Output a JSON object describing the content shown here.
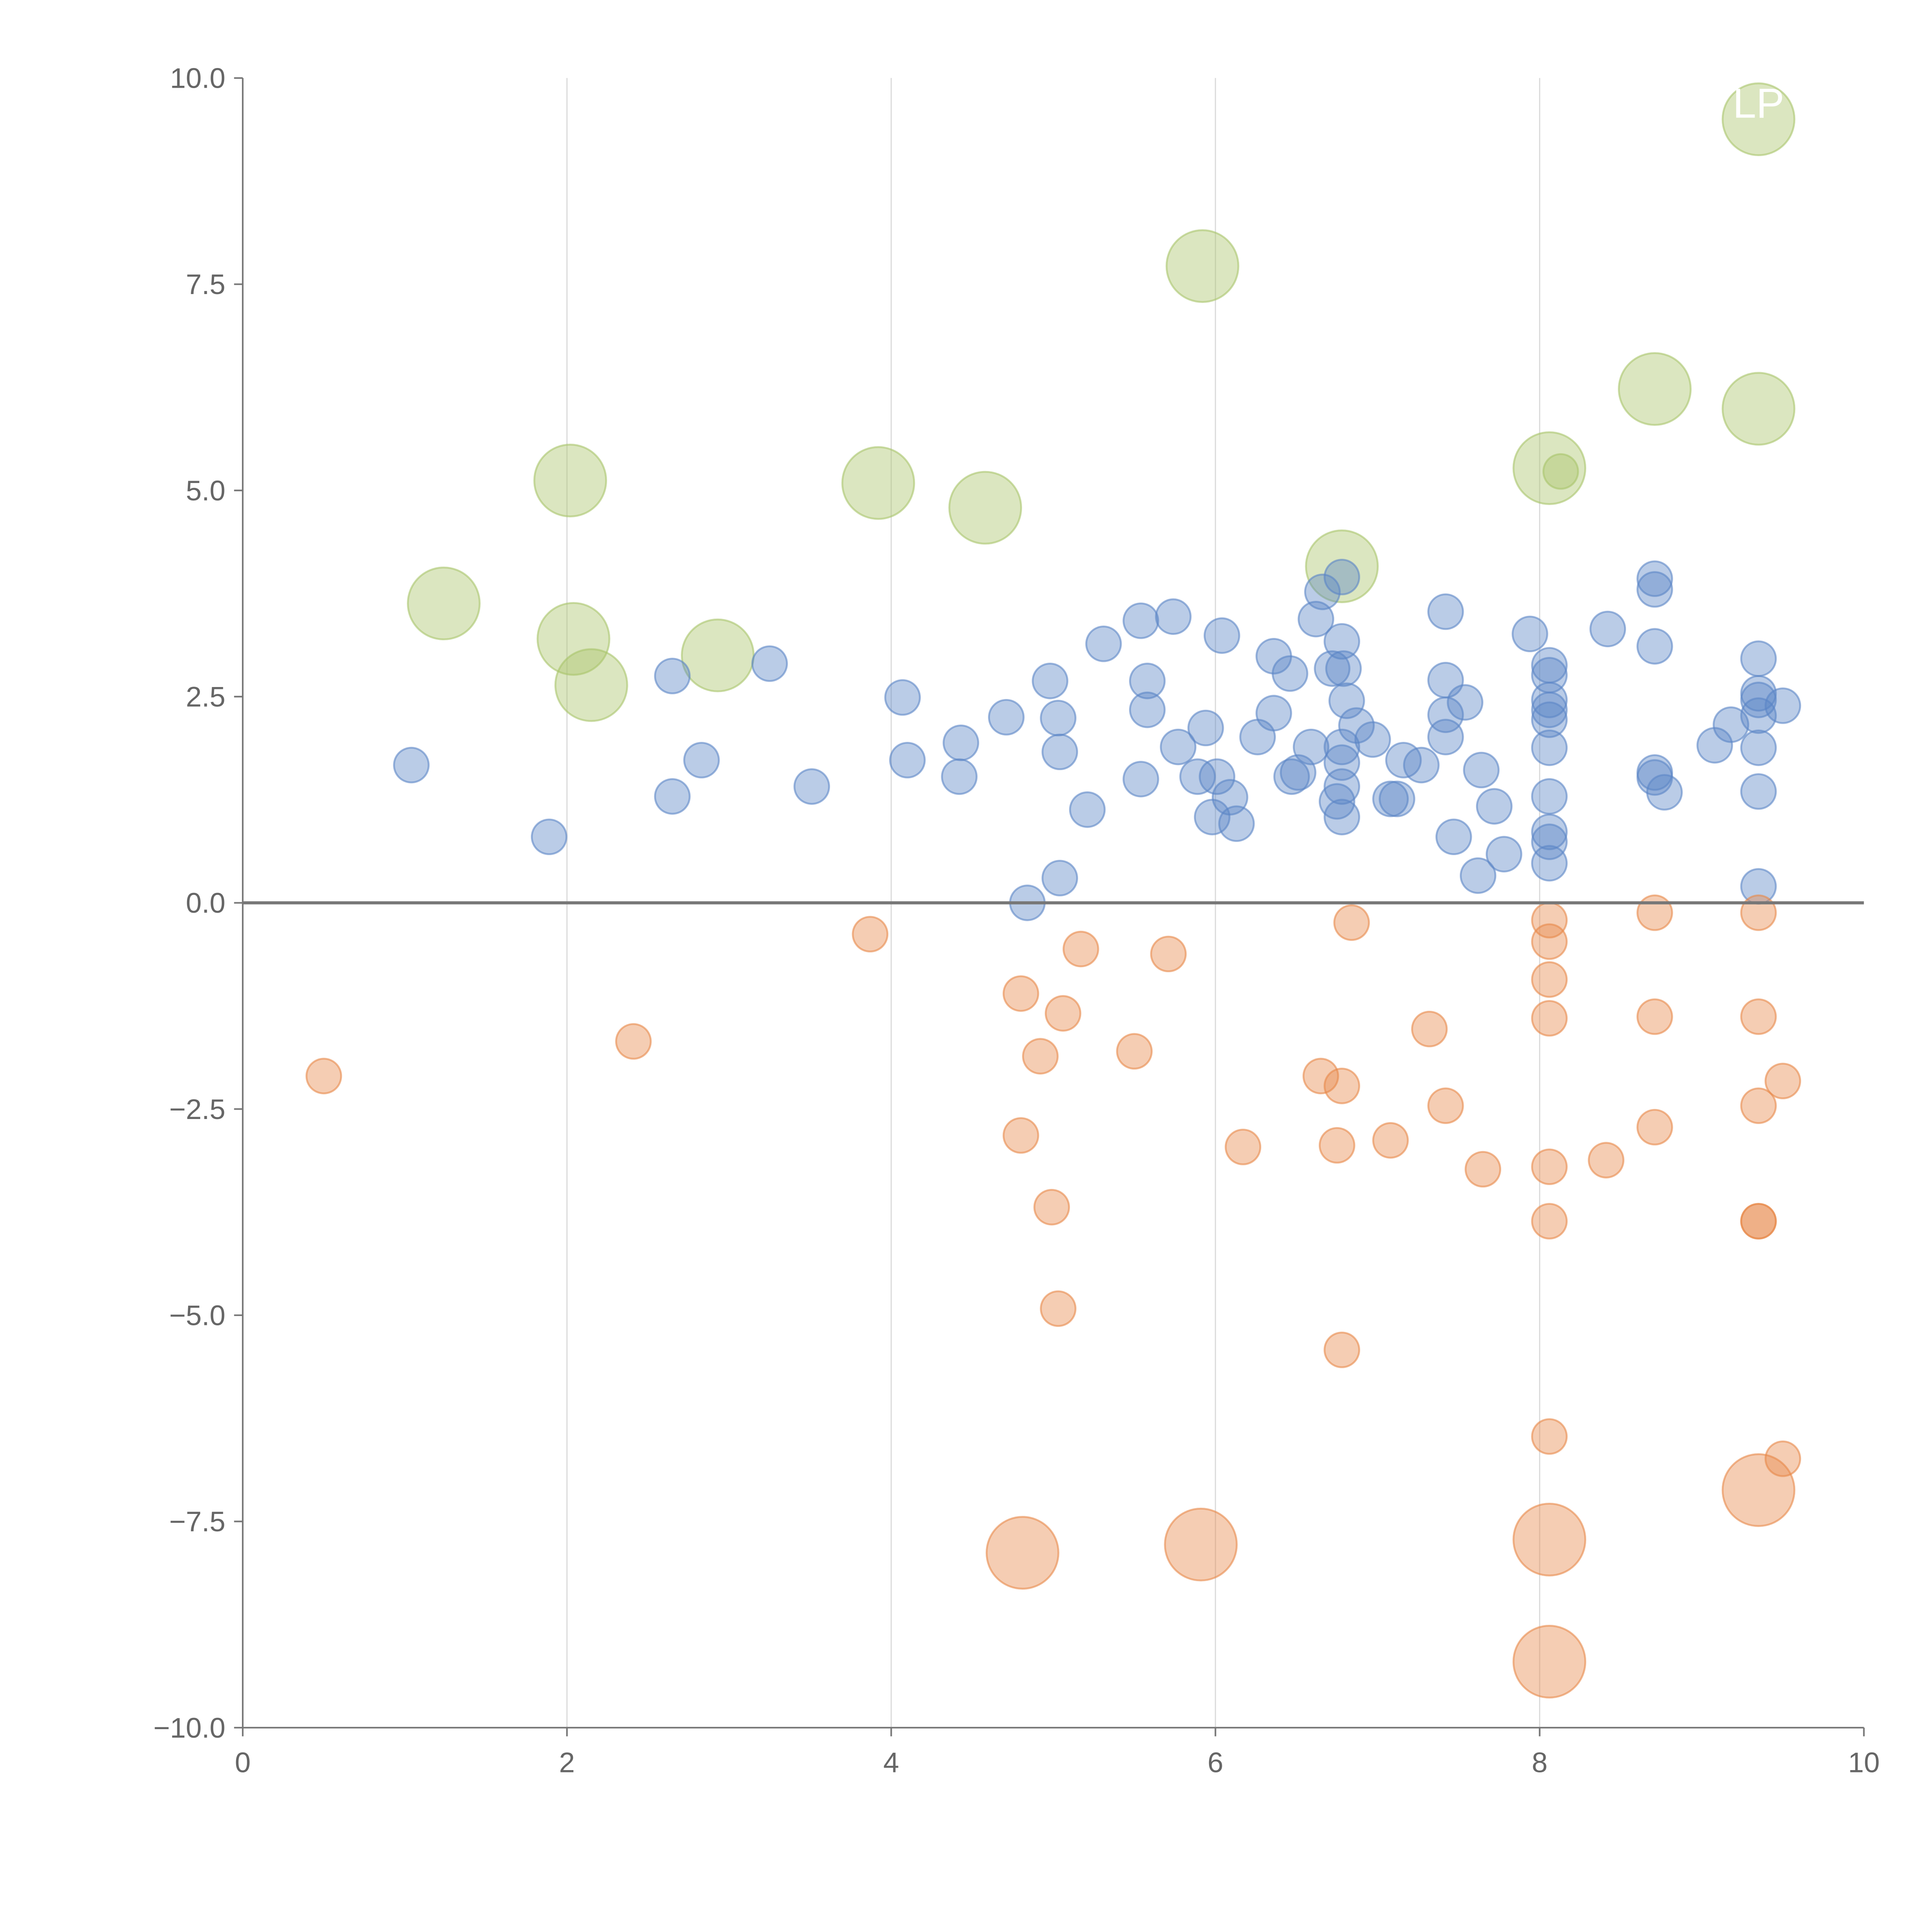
{
  "chart_data": {
    "type": "scatter",
    "title": "",
    "xlabel": "",
    "ylabel": "",
    "xlim": [
      0,
      10
    ],
    "ylim": [
      -10,
      10
    ],
    "xticks": [
      "0",
      "2",
      "4",
      "6",
      "8",
      "10"
    ],
    "yticks": [
      "10.0",
      "7.5",
      "5.0",
      "2.5",
      "0.0",
      "−2.5",
      "−5.0",
      "−7.5",
      "−10.0"
    ],
    "grid": "vertical",
    "reference_line_y": 0,
    "annotations": [
      {
        "text": "LP",
        "x": 9.35,
        "y": 9.7
      }
    ],
    "series": [
      {
        "name": "green",
        "color": "#a9c46a",
        "points": [
          [
            1.24,
            3.63,
            2
          ],
          [
            2.02,
            5.12,
            2
          ],
          [
            2.04,
            3.2,
            2
          ],
          [
            2.15,
            2.64,
            2
          ],
          [
            2.93,
            3.0,
            2
          ],
          [
            3.92,
            5.09,
            2
          ],
          [
            4.58,
            4.79,
            2
          ],
          [
            5.92,
            7.72,
            2
          ],
          [
            6.78,
            4.08,
            2
          ],
          [
            8.06,
            5.27,
            2
          ],
          [
            8.13,
            5.23,
            1
          ],
          [
            8.71,
            6.23,
            2
          ],
          [
            9.35,
            5.99,
            2
          ],
          [
            9.35,
            9.5,
            2
          ]
        ]
      },
      {
        "name": "blue",
        "color": "#5b86c6",
        "points": [
          [
            1.04,
            1.67,
            1
          ],
          [
            1.89,
            0.8,
            1
          ],
          [
            2.65,
            2.75,
            1
          ],
          [
            2.65,
            1.29,
            1
          ],
          [
            2.83,
            1.73,
            1
          ],
          [
            3.25,
            2.9,
            1
          ],
          [
            3.51,
            1.41,
            1
          ],
          [
            4.07,
            2.49,
            1
          ],
          [
            4.1,
            1.73,
            1
          ],
          [
            4.43,
            1.94,
            1
          ],
          [
            4.42,
            1.53,
            1
          ],
          [
            4.71,
            2.25,
            1
          ],
          [
            4.98,
            2.69,
            1
          ],
          [
            5.03,
            2.24,
            1
          ],
          [
            5.04,
            1.83,
            1
          ],
          [
            4.84,
            0.0,
            1
          ],
          [
            5.04,
            0.3,
            1
          ],
          [
            5.21,
            1.13,
            1
          ],
          [
            5.31,
            3.14,
            1
          ],
          [
            5.54,
            3.42,
            1
          ],
          [
            5.58,
            2.69,
            1
          ],
          [
            5.58,
            2.34,
            1
          ],
          [
            5.54,
            1.5,
            1
          ],
          [
            5.74,
            3.47,
            1
          ],
          [
            5.77,
            1.89,
            1
          ],
          [
            5.94,
            2.12,
            1
          ],
          [
            5.89,
            1.53,
            1
          ],
          [
            6.01,
            1.53,
            1
          ],
          [
            5.98,
            1.04,
            1
          ],
          [
            6.09,
            1.28,
            1
          ],
          [
            6.13,
            0.96,
            1
          ],
          [
            6.04,
            3.24,
            1
          ],
          [
            6.26,
            2.01,
            1
          ],
          [
            6.36,
            2.99,
            1
          ],
          [
            6.36,
            2.3,
            1
          ],
          [
            6.46,
            2.78,
            1
          ],
          [
            6.47,
            1.53,
            1
          ],
          [
            6.51,
            1.58,
            1
          ],
          [
            6.59,
            1.89,
            1
          ],
          [
            6.62,
            3.44,
            1
          ],
          [
            6.66,
            3.77,
            1
          ],
          [
            6.72,
            2.84,
            1
          ],
          [
            6.78,
            3.95,
            1
          ],
          [
            6.78,
            3.17,
            1
          ],
          [
            6.79,
            2.84,
            1
          ],
          [
            6.81,
            2.45,
            1
          ],
          [
            6.78,
            1.89,
            1
          ],
          [
            6.78,
            1.7,
            1
          ],
          [
            6.78,
            1.41,
            1
          ],
          [
            6.75,
            1.23,
            1
          ],
          [
            6.78,
            1.04,
            1
          ],
          [
            6.87,
            2.15,
            1
          ],
          [
            6.97,
            1.98,
            1
          ],
          [
            7.08,
            1.26,
            1
          ],
          [
            7.12,
            1.26,
            1
          ],
          [
            7.16,
            1.73,
            1
          ],
          [
            7.27,
            1.67,
            1
          ],
          [
            7.42,
            3.53,
            1
          ],
          [
            7.42,
            2.7,
            1
          ],
          [
            7.42,
            2.28,
            1
          ],
          [
            7.42,
            2.01,
            1
          ],
          [
            7.54,
            2.43,
            1
          ],
          [
            7.47,
            0.8,
            1
          ],
          [
            7.64,
            1.61,
            1
          ],
          [
            7.62,
            0.33,
            1
          ],
          [
            7.72,
            1.17,
            1
          ],
          [
            7.78,
            0.59,
            1
          ],
          [
            7.94,
            3.26,
            1
          ],
          [
            8.06,
            2.88,
            1
          ],
          [
            8.06,
            2.76,
            1
          ],
          [
            8.06,
            2.46,
            1
          ],
          [
            8.06,
            2.34,
            1
          ],
          [
            8.06,
            2.22,
            1
          ],
          [
            8.06,
            1.88,
            1
          ],
          [
            8.06,
            1.29,
            1
          ],
          [
            8.06,
            0.86,
            1
          ],
          [
            8.06,
            0.74,
            1
          ],
          [
            8.06,
            0.48,
            1
          ],
          [
            8.42,
            3.32,
            1
          ],
          [
            8.71,
            3.93,
            1
          ],
          [
            8.71,
            3.8,
            1
          ],
          [
            8.71,
            3.11,
            1
          ],
          [
            8.71,
            1.58,
            1
          ],
          [
            8.71,
            1.52,
            1
          ],
          [
            8.77,
            1.34,
            1
          ],
          [
            9.08,
            1.91,
            1
          ],
          [
            9.18,
            2.16,
            1
          ],
          [
            9.35,
            2.96,
            1
          ],
          [
            9.35,
            2.54,
            1
          ],
          [
            9.35,
            2.46,
            1
          ],
          [
            9.35,
            2.27,
            1
          ],
          [
            9.35,
            1.88,
            1
          ],
          [
            9.35,
            1.35,
            1
          ],
          [
            9.35,
            0.2,
            1
          ],
          [
            9.5,
            2.39,
            1
          ]
        ]
      },
      {
        "name": "orange",
        "color": "#e8894a",
        "points": [
          [
            0.5,
            -2.1,
            1
          ],
          [
            2.41,
            -1.68,
            1
          ],
          [
            3.87,
            -0.38,
            1
          ],
          [
            4.8,
            -1.1,
            1
          ],
          [
            4.92,
            -1.86,
            1
          ],
          [
            5.06,
            -1.34,
            1
          ],
          [
            5.17,
            -0.56,
            1
          ],
          [
            4.8,
            -2.82,
            1
          ],
          [
            4.99,
            -3.69,
            1
          ],
          [
            5.03,
            -4.92,
            1
          ],
          [
            5.5,
            -1.8,
            1
          ],
          [
            5.71,
            -0.62,
            1
          ],
          [
            6.17,
            -2.96,
            1
          ],
          [
            6.65,
            -2.1,
            1
          ],
          [
            6.78,
            -2.22,
            1
          ],
          [
            6.75,
            -2.94,
            1
          ],
          [
            6.84,
            -0.24,
            1
          ],
          [
            7.08,
            -2.88,
            1
          ],
          [
            6.78,
            -5.42,
            1
          ],
          [
            7.32,
            -1.53,
            1
          ],
          [
            7.42,
            -2.46,
            1
          ],
          [
            7.65,
            -3.23,
            1
          ],
          [
            8.06,
            -0.21,
            1
          ],
          [
            8.06,
            -0.47,
            1
          ],
          [
            8.06,
            -0.93,
            1
          ],
          [
            8.06,
            -1.4,
            1
          ],
          [
            8.06,
            -3.2,
            1
          ],
          [
            8.06,
            -3.86,
            1
          ],
          [
            8.06,
            -6.47,
            1
          ],
          [
            8.41,
            -3.12,
            1
          ],
          [
            8.71,
            -0.12,
            1
          ],
          [
            8.71,
            -1.38,
            1
          ],
          [
            8.71,
            -2.72,
            1
          ],
          [
            9.35,
            -0.12,
            1
          ],
          [
            9.35,
            -1.38,
            1
          ],
          [
            9.35,
            -2.46,
            1
          ],
          [
            9.35,
            -3.86,
            1
          ],
          [
            9.35,
            -3.86,
            1
          ],
          [
            9.5,
            -2.16,
            1
          ],
          [
            9.5,
            -6.74,
            1
          ],
          [
            4.81,
            -7.88,
            2
          ],
          [
            5.91,
            -7.78,
            2
          ],
          [
            8.06,
            -7.72,
            2
          ],
          [
            8.06,
            -9.2,
            2
          ],
          [
            9.35,
            -7.12,
            2
          ]
        ]
      }
    ]
  }
}
